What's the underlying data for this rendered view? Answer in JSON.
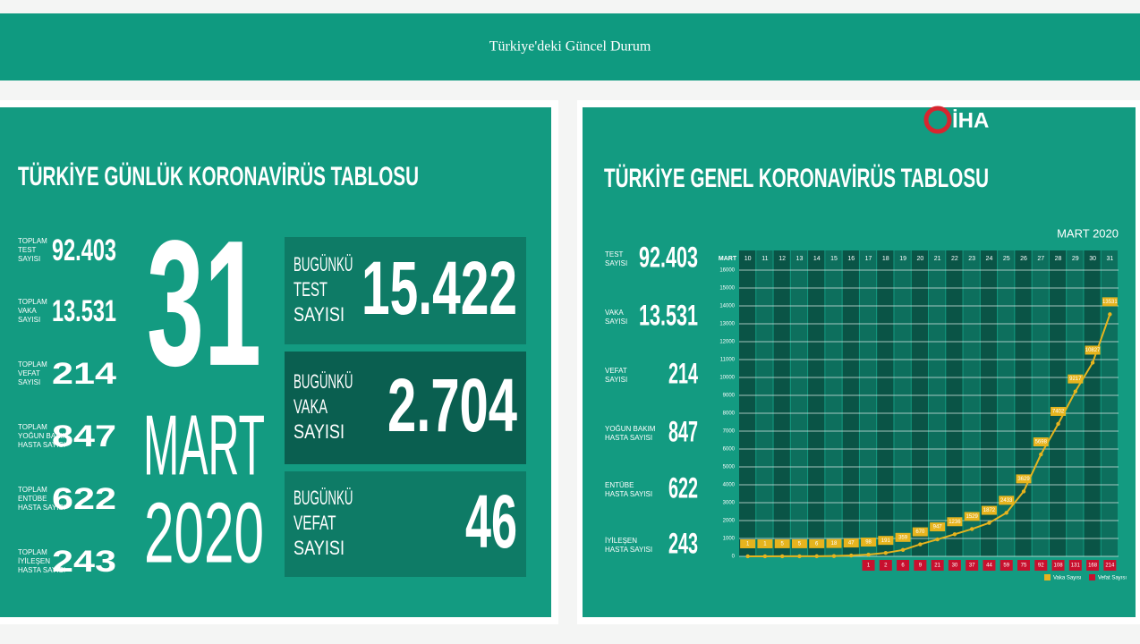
{
  "header": {
    "title": "Türkiye'deki Güncel Durum"
  },
  "daily": {
    "title": "TÜRKİYE GÜNLÜK KORONAVİRÜS TABLOSU",
    "stats": [
      {
        "label": [
          "TOPLAM",
          "TEST",
          "SAYISI"
        ],
        "value": "92.403"
      },
      {
        "label": [
          "TOPLAM",
          "VAKA",
          "SAYISI"
        ],
        "value": "13.531"
      },
      {
        "label": [
          "TOPLAM",
          "VEFAT",
          "SAYISI"
        ],
        "value": "214"
      },
      {
        "label": [
          "TOPLAM",
          "YOĞUN BAKIM",
          "HASTA SAYISI"
        ],
        "value": "847"
      },
      {
        "label": [
          "TOPLAM",
          "ENTÜBE",
          "HASTA SAYISI"
        ],
        "value": "622"
      },
      {
        "label": [
          "TOPLAM",
          "İYİLEŞEN",
          "HASTA SAYISI"
        ],
        "value": "243"
      }
    ],
    "date": {
      "day": "31",
      "month": "MART",
      "year": "2020"
    },
    "today": [
      {
        "label": [
          "BUGÜNKÜ",
          "TEST",
          "SAYISI"
        ],
        "value": "15.422"
      },
      {
        "label": [
          "BUGÜNKÜ",
          "VAKA",
          "SAYISI"
        ],
        "value": "2.704"
      },
      {
        "label": [
          "BUGÜNKÜ",
          "VEFAT",
          "SAYISI"
        ],
        "value": "46"
      }
    ]
  },
  "general": {
    "title": "TÜRKİYE GENEL KORONAVİRÜS TABLOSU",
    "logo": "İHA",
    "stats": [
      {
        "label": [
          "TEST",
          "SAYISI"
        ],
        "value": "92.403"
      },
      {
        "label": [
          "VAKA",
          "SAYISI"
        ],
        "value": "13.531"
      },
      {
        "label": [
          "VEFAT",
          "SAYISI"
        ],
        "value": "214"
      },
      {
        "label": [
          "YOĞUN BAKIM",
          "HASTA SAYISI"
        ],
        "value": "847"
      },
      {
        "label": [
          "ENTÜBE",
          "HASTA SAYISI"
        ],
        "value": "622"
      },
      {
        "label": [
          "İYİLEŞEN",
          "HASTA SAYISI"
        ],
        "value": "243"
      }
    ]
  },
  "chart_data": {
    "type": "line",
    "subtitle": "MART 2020",
    "x_label": "MART",
    "categories": [
      "10",
      "11",
      "12",
      "13",
      "14",
      "15",
      "16",
      "17",
      "18",
      "19",
      "20",
      "21",
      "22",
      "23",
      "24",
      "25",
      "26",
      "27",
      "28",
      "29",
      "30",
      "31"
    ],
    "series": [
      {
        "name": "Vaka Sayısı",
        "color": "#e6b41e",
        "values": [
          1,
          1,
          5,
          5,
          6,
          18,
          47,
          98,
          191,
          359,
          670,
          947,
          1236,
          1529,
          1872,
          2433,
          3629,
          5698,
          7402,
          9217,
          10827,
          13531
        ]
      },
      {
        "name": "Vefat Sayısı",
        "color": "#c8102e",
        "values": [
          null,
          null,
          null,
          null,
          null,
          null,
          null,
          1,
          2,
          6,
          9,
          21,
          30,
          37,
          44,
          59,
          75,
          92,
          108,
          131,
          168,
          214
        ]
      }
    ],
    "ylim": [
      0,
      16000
    ],
    "yticks": [
      0,
      1000,
      2000,
      3000,
      4000,
      5000,
      6000,
      7000,
      8000,
      9000,
      10000,
      11000,
      12000,
      13000,
      14000,
      15000,
      16000
    ],
    "grid": true
  }
}
